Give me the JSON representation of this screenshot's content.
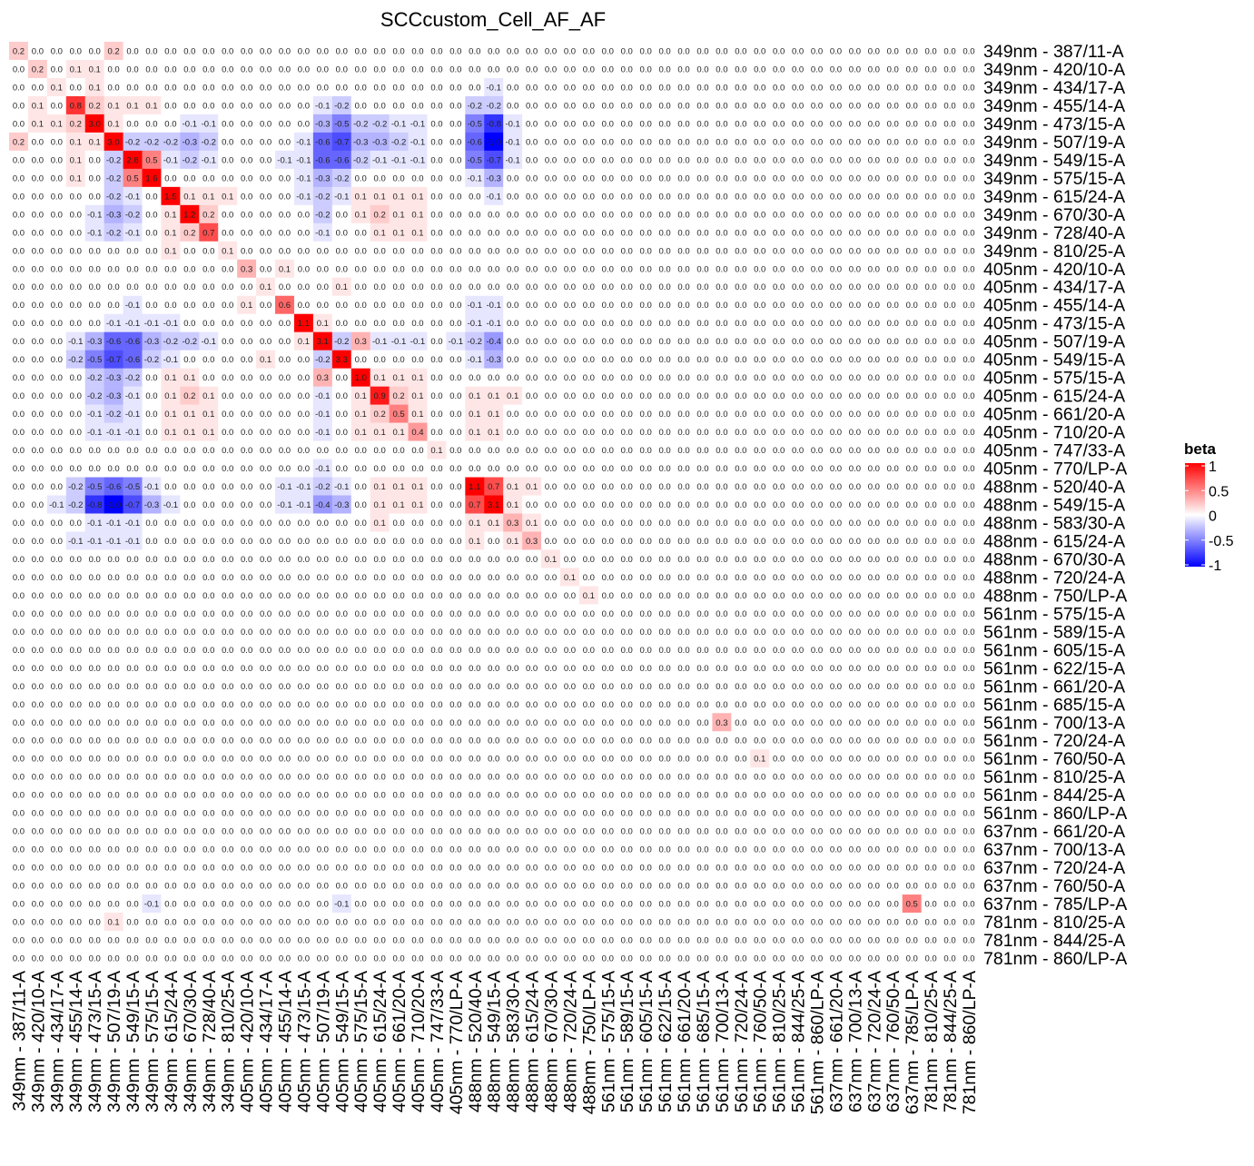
{
  "chart_data": {
    "type": "heatmap",
    "title": "SCCcustom_Cell_AF_AF",
    "labels": [
      "349nm - 387/11-A",
      "349nm - 420/10-A",
      "349nm - 434/17-A",
      "349nm - 455/14-A",
      "349nm - 473/15-A",
      "349nm - 507/19-A",
      "349nm - 549/15-A",
      "349nm - 575/15-A",
      "349nm - 615/24-A",
      "349nm - 670/30-A",
      "349nm - 728/40-A",
      "349nm - 810/25-A",
      "405nm - 420/10-A",
      "405nm - 434/17-A",
      "405nm - 455/14-A",
      "405nm - 473/15-A",
      "405nm - 507/19-A",
      "405nm - 549/15-A",
      "405nm - 575/15-A",
      "405nm - 615/24-A",
      "405nm - 661/20-A",
      "405nm - 710/20-A",
      "405nm - 747/33-A",
      "405nm - 770/LP-A",
      "488nm - 520/40-A",
      "488nm - 549/15-A",
      "488nm - 583/30-A",
      "488nm - 615/24-A",
      "488nm - 670/30-A",
      "488nm - 720/24-A",
      "488nm - 750/LP-A",
      "561nm - 575/15-A",
      "561nm - 589/15-A",
      "561nm - 605/15-A",
      "561nm - 622/15-A",
      "561nm - 661/20-A",
      "561nm - 685/15-A",
      "561nm - 700/13-A",
      "561nm - 720/24-A",
      "561nm - 760/50-A",
      "561nm - 810/25-A",
      "561nm - 844/25-A",
      "561nm - 860/LP-A",
      "637nm - 661/20-A",
      "637nm - 700/13-A",
      "637nm - 720/24-A",
      "637nm - 760/50-A",
      "637nm - 785/LP-A",
      "781nm - 810/25-A",
      "781nm - 844/25-A",
      "781nm - 860/LP-A"
    ],
    "default_value": 0.0,
    "cells_note": "[row, col, beta]; unlisted cells are 0.0",
    "cells": [
      [
        0,
        0,
        0.2
      ],
      [
        0,
        5,
        0.2
      ],
      [
        1,
        1,
        0.2
      ],
      [
        1,
        3,
        0.1
      ],
      [
        1,
        4,
        0.1
      ],
      [
        2,
        2,
        0.1
      ],
      [
        2,
        4,
        0.1
      ],
      [
        2,
        25,
        -0.1
      ],
      [
        3,
        1,
        0.1
      ],
      [
        3,
        3,
        0.8
      ],
      [
        3,
        4,
        0.2
      ],
      [
        3,
        5,
        0.1
      ],
      [
        3,
        6,
        0.1
      ],
      [
        3,
        7,
        0.1
      ],
      [
        3,
        16,
        -0.1
      ],
      [
        3,
        17,
        -0.2
      ],
      [
        3,
        24,
        -0.2
      ],
      [
        3,
        25,
        -0.2
      ],
      [
        4,
        1,
        0.1
      ],
      [
        4,
        2,
        0.1
      ],
      [
        4,
        3,
        0.2
      ],
      [
        4,
        4,
        3.0
      ],
      [
        4,
        5,
        0.1
      ],
      [
        4,
        9,
        -0.1
      ],
      [
        4,
        10,
        -0.1
      ],
      [
        4,
        16,
        -0.3
      ],
      [
        4,
        17,
        -0.5
      ],
      [
        4,
        18,
        -0.2
      ],
      [
        4,
        19,
        -0.2
      ],
      [
        4,
        20,
        -0.1
      ],
      [
        4,
        21,
        -0.1
      ],
      [
        4,
        24,
        -0.5
      ],
      [
        4,
        25,
        -0.8
      ],
      [
        4,
        26,
        -0.1
      ],
      [
        5,
        0,
        0.2
      ],
      [
        5,
        3,
        0.1
      ],
      [
        5,
        4,
        0.1
      ],
      [
        5,
        5,
        3.0
      ],
      [
        5,
        6,
        -0.2
      ],
      [
        5,
        7,
        -0.2
      ],
      [
        5,
        8,
        -0.2
      ],
      [
        5,
        9,
        -0.3
      ],
      [
        5,
        10,
        -0.2
      ],
      [
        5,
        15,
        -0.1
      ],
      [
        5,
        16,
        -0.6
      ],
      [
        5,
        17,
        -0.7
      ],
      [
        5,
        18,
        -0.3
      ],
      [
        5,
        19,
        -0.3
      ],
      [
        5,
        20,
        -0.2
      ],
      [
        5,
        21,
        -0.1
      ],
      [
        5,
        24,
        -0.6
      ],
      [
        5,
        25,
        -1.0
      ],
      [
        5,
        26,
        -0.1
      ],
      [
        6,
        3,
        0.1
      ],
      [
        6,
        5,
        -0.2
      ],
      [
        6,
        6,
        2.8
      ],
      [
        6,
        7,
        0.5
      ],
      [
        6,
        8,
        -0.1
      ],
      [
        6,
        9,
        -0.2
      ],
      [
        6,
        10,
        -0.1
      ],
      [
        6,
        14,
        -0.1
      ],
      [
        6,
        15,
        -0.1
      ],
      [
        6,
        16,
        -0.6
      ],
      [
        6,
        17,
        -0.6
      ],
      [
        6,
        18,
        -0.2
      ],
      [
        6,
        19,
        -0.1
      ],
      [
        6,
        20,
        -0.1
      ],
      [
        6,
        21,
        -0.1
      ],
      [
        6,
        24,
        -0.5
      ],
      [
        6,
        25,
        -0.7
      ],
      [
        6,
        26,
        -0.1
      ],
      [
        7,
        3,
        0.1
      ],
      [
        7,
        5,
        -0.2
      ],
      [
        7,
        6,
        0.5
      ],
      [
        7,
        7,
        1.6
      ],
      [
        7,
        15,
        -0.1
      ],
      [
        7,
        16,
        -0.3
      ],
      [
        7,
        17,
        -0.2
      ],
      [
        7,
        24,
        -0.1
      ],
      [
        7,
        25,
        -0.3
      ],
      [
        8,
        5,
        -0.2
      ],
      [
        8,
        6,
        -0.1
      ],
      [
        8,
        8,
        1.5
      ],
      [
        8,
        9,
        0.1
      ],
      [
        8,
        10,
        0.1
      ],
      [
        8,
        11,
        0.1
      ],
      [
        8,
        15,
        -0.1
      ],
      [
        8,
        16,
        -0.2
      ],
      [
        8,
        17,
        -0.1
      ],
      [
        8,
        18,
        0.1
      ],
      [
        8,
        19,
        0.1
      ],
      [
        8,
        20,
        0.1
      ],
      [
        8,
        21,
        0.1
      ],
      [
        8,
        25,
        -0.1
      ],
      [
        9,
        4,
        -0.1
      ],
      [
        9,
        5,
        -0.3
      ],
      [
        9,
        6,
        -0.2
      ],
      [
        9,
        8,
        0.1
      ],
      [
        9,
        9,
        1.2
      ],
      [
        9,
        10,
        0.2
      ],
      [
        9,
        16,
        -0.2
      ],
      [
        9,
        18,
        0.1
      ],
      [
        9,
        19,
        0.2
      ],
      [
        9,
        20,
        0.1
      ],
      [
        9,
        21,
        0.1
      ],
      [
        10,
        4,
        -0.1
      ],
      [
        10,
        5,
        -0.2
      ],
      [
        10,
        6,
        -0.1
      ],
      [
        10,
        8,
        0.1
      ],
      [
        10,
        9,
        0.2
      ],
      [
        10,
        10,
        0.7
      ],
      [
        10,
        16,
        -0.1
      ],
      [
        10,
        19,
        0.1
      ],
      [
        10,
        20,
        0.1
      ],
      [
        10,
        21,
        0.1
      ],
      [
        11,
        8,
        0.1
      ],
      [
        11,
        11,
        0.1
      ],
      [
        12,
        12,
        0.3
      ],
      [
        12,
        14,
        0.1
      ],
      [
        13,
        13,
        0.1
      ],
      [
        13,
        17,
        0.1
      ],
      [
        14,
        6,
        -0.1
      ],
      [
        14,
        12,
        0.1
      ],
      [
        14,
        14,
        0.6
      ],
      [
        14,
        24,
        -0.1
      ],
      [
        14,
        25,
        -0.1
      ],
      [
        15,
        5,
        -0.1
      ],
      [
        15,
        6,
        -0.1
      ],
      [
        15,
        7,
        -0.1
      ],
      [
        15,
        8,
        -0.1
      ],
      [
        15,
        15,
        1.1
      ],
      [
        15,
        16,
        0.1
      ],
      [
        15,
        24,
        -0.1
      ],
      [
        15,
        25,
        -0.1
      ],
      [
        16,
        3,
        -0.1
      ],
      [
        16,
        4,
        -0.3
      ],
      [
        16,
        5,
        -0.6
      ],
      [
        16,
        6,
        -0.6
      ],
      [
        16,
        7,
        -0.3
      ],
      [
        16,
        8,
        -0.2
      ],
      [
        16,
        9,
        -0.2
      ],
      [
        16,
        10,
        -0.1
      ],
      [
        16,
        15,
        0.1
      ],
      [
        16,
        16,
        3.1
      ],
      [
        16,
        17,
        -0.2
      ],
      [
        16,
        18,
        0.3
      ],
      [
        16,
        19,
        -0.1
      ],
      [
        16,
        20,
        -0.1
      ],
      [
        16,
        21,
        -0.1
      ],
      [
        16,
        23,
        -0.1
      ],
      [
        16,
        24,
        -0.2
      ],
      [
        16,
        25,
        -0.4
      ],
      [
        17,
        3,
        -0.2
      ],
      [
        17,
        4,
        -0.5
      ],
      [
        17,
        5,
        -0.7
      ],
      [
        17,
        6,
        -0.6
      ],
      [
        17,
        7,
        -0.2
      ],
      [
        17,
        8,
        -0.1
      ],
      [
        17,
        13,
        0.1
      ],
      [
        17,
        16,
        -0.2
      ],
      [
        17,
        17,
        3.3
      ],
      [
        17,
        24,
        -0.1
      ],
      [
        17,
        25,
        -0.3
      ],
      [
        18,
        4,
        -0.2
      ],
      [
        18,
        5,
        -0.3
      ],
      [
        18,
        6,
        -0.2
      ],
      [
        18,
        8,
        0.1
      ],
      [
        18,
        9,
        0.1
      ],
      [
        18,
        16,
        0.3
      ],
      [
        18,
        18,
        1.0
      ],
      [
        18,
        19,
        0.1
      ],
      [
        18,
        20,
        0.1
      ],
      [
        18,
        21,
        0.1
      ],
      [
        19,
        4,
        -0.2
      ],
      [
        19,
        5,
        -0.3
      ],
      [
        19,
        6,
        -0.1
      ],
      [
        19,
        8,
        0.1
      ],
      [
        19,
        9,
        0.2
      ],
      [
        19,
        10,
        0.1
      ],
      [
        19,
        16,
        -0.1
      ],
      [
        19,
        18,
        0.1
      ],
      [
        19,
        19,
        0.9
      ],
      [
        19,
        20,
        0.2
      ],
      [
        19,
        21,
        0.1
      ],
      [
        19,
        24,
        0.1
      ],
      [
        19,
        25,
        0.1
      ],
      [
        19,
        26,
        0.1
      ],
      [
        20,
        4,
        -0.1
      ],
      [
        20,
        5,
        -0.2
      ],
      [
        20,
        6,
        -0.1
      ],
      [
        20,
        8,
        0.1
      ],
      [
        20,
        9,
        0.1
      ],
      [
        20,
        10,
        0.1
      ],
      [
        20,
        16,
        -0.1
      ],
      [
        20,
        18,
        0.1
      ],
      [
        20,
        19,
        0.2
      ],
      [
        20,
        20,
        0.5
      ],
      [
        20,
        21,
        0.1
      ],
      [
        20,
        24,
        0.1
      ],
      [
        20,
        25,
        0.1
      ],
      [
        21,
        4,
        -0.1
      ],
      [
        21,
        5,
        -0.1
      ],
      [
        21,
        6,
        -0.1
      ],
      [
        21,
        8,
        0.1
      ],
      [
        21,
        9,
        0.1
      ],
      [
        21,
        10,
        0.1
      ],
      [
        21,
        16,
        -0.1
      ],
      [
        21,
        18,
        0.1
      ],
      [
        21,
        19,
        0.1
      ],
      [
        21,
        20,
        0.1
      ],
      [
        21,
        21,
        0.4
      ],
      [
        21,
        24,
        0.1
      ],
      [
        21,
        25,
        0.1
      ],
      [
        22,
        22,
        0.1
      ],
      [
        23,
        16,
        -0.1
      ],
      [
        24,
        3,
        -0.2
      ],
      [
        24,
        4,
        -0.5
      ],
      [
        24,
        5,
        -0.6
      ],
      [
        24,
        6,
        -0.5
      ],
      [
        24,
        7,
        -0.1
      ],
      [
        24,
        14,
        -0.1
      ],
      [
        24,
        15,
        -0.1
      ],
      [
        24,
        16,
        -0.2
      ],
      [
        24,
        17,
        -0.1
      ],
      [
        24,
        19,
        0.1
      ],
      [
        24,
        20,
        0.1
      ],
      [
        24,
        21,
        0.1
      ],
      [
        24,
        24,
        1.1
      ],
      [
        24,
        25,
        0.7
      ],
      [
        24,
        26,
        0.1
      ],
      [
        24,
        27,
        0.1
      ],
      [
        25,
        2,
        -0.1
      ],
      [
        25,
        3,
        -0.2
      ],
      [
        25,
        4,
        -0.8
      ],
      [
        25,
        5,
        -1.0
      ],
      [
        25,
        6,
        -0.7
      ],
      [
        25,
        7,
        -0.3
      ],
      [
        25,
        8,
        -0.1
      ],
      [
        25,
        14,
        -0.1
      ],
      [
        25,
        15,
        -0.1
      ],
      [
        25,
        16,
        -0.4
      ],
      [
        25,
        17,
        -0.3
      ],
      [
        25,
        19,
        0.1
      ],
      [
        25,
        20,
        0.1
      ],
      [
        25,
        21,
        0.1
      ],
      [
        25,
        24,
        0.7
      ],
      [
        25,
        25,
        3.1
      ],
      [
        25,
        26,
        0.1
      ],
      [
        26,
        4,
        -0.1
      ],
      [
        26,
        5,
        -0.1
      ],
      [
        26,
        6,
        -0.1
      ],
      [
        26,
        19,
        0.1
      ],
      [
        26,
        24,
        0.1
      ],
      [
        26,
        25,
        0.1
      ],
      [
        26,
        26,
        0.3
      ],
      [
        26,
        27,
        0.1
      ],
      [
        27,
        3,
        -0.1
      ],
      [
        27,
        4,
        -0.1
      ],
      [
        27,
        5,
        -0.1
      ],
      [
        27,
        6,
        -0.1
      ],
      [
        27,
        24,
        0.1
      ],
      [
        27,
        26,
        0.1
      ],
      [
        27,
        27,
        0.3
      ],
      [
        28,
        28,
        0.1
      ],
      [
        29,
        29,
        0.1
      ],
      [
        30,
        30,
        0.1
      ],
      [
        37,
        37,
        0.3
      ],
      [
        39,
        39,
        0.1
      ],
      [
        47,
        7,
        -0.1
      ],
      [
        47,
        17,
        -0.1
      ],
      [
        47,
        47,
        0.5
      ],
      [
        48,
        5,
        0.1
      ]
    ],
    "legend": {
      "title": "beta",
      "ticks": [
        1,
        0.5,
        0,
        -0.5,
        -1
      ],
      "tick_labels": [
        "1",
        "0.5",
        "0",
        "-0.5",
        "-1"
      ],
      "range": [
        -1,
        1
      ],
      "placement": "right"
    },
    "colors": {
      "high": "#FF0000",
      "mid": "#FFFFFF",
      "low": "#0000FF"
    }
  }
}
